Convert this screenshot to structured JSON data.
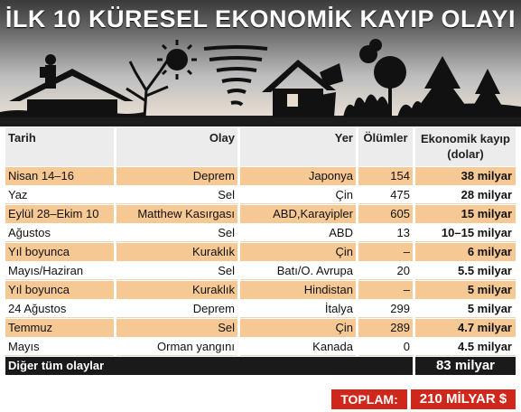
{
  "title": "İLK 10 KÜRESEL EKONOMİK KAYIP OLAYI",
  "illustration_icons": [
    "flood-house-icon",
    "drought-tree-icon",
    "sun-icon",
    "tornado-icon",
    "earthquake-house-icon",
    "wildfire-forest-icon"
  ],
  "colors": {
    "row_highlight": "#f6c894",
    "total_red": "#d0271d",
    "dark_row": "#1a1a1a"
  },
  "table": {
    "headers": {
      "date": "Tarih",
      "event": "Olay",
      "place": "Yer",
      "deaths": "Ölümler",
      "loss": "Ekonomik kayıp (dolar)"
    },
    "rows": [
      {
        "date": "Nisan 14–16",
        "event": "Deprem",
        "place": "Japonya",
        "deaths": "154",
        "loss": "38 milyar"
      },
      {
        "date": "Yaz",
        "event": "Sel",
        "place": "Çin",
        "deaths": "475",
        "loss": "28 milyar"
      },
      {
        "date": "Eylül 28–Ekim 10",
        "event": "Matthew Kasırgası",
        "place": "ABD,Karayipler",
        "deaths": "605",
        "loss": "15 milyar"
      },
      {
        "date": "Ağustos",
        "event": "Sel",
        "place": "ABD",
        "deaths": "13",
        "loss": "10–15 milyar"
      },
      {
        "date": "Yıl boyunca",
        "event": "Kuraklık",
        "place": "Çin",
        "deaths": "–",
        "loss": "6 milyar"
      },
      {
        "date": "Mayıs/Haziran",
        "event": "Sel",
        "place": "Batı/O. Avrupa",
        "deaths": "20",
        "loss": "5.5 milyar"
      },
      {
        "date": "Yıl boyunca",
        "event": "Kuraklık",
        "place": "Hindistan",
        "deaths": "–",
        "loss": "5 milyar"
      },
      {
        "date": "24 Ağustos",
        "event": "Deprem",
        "place": "İtalya",
        "deaths": "299",
        "loss": "5 milyar"
      },
      {
        "date": "Temmuz",
        "event": "Sel",
        "place": "Çin",
        "deaths": "289",
        "loss": "4.7 milyar"
      },
      {
        "date": "Mayıs",
        "event": "Orman yangını",
        "place": "Kanada",
        "deaths": "0",
        "loss": "4.5 milyar"
      }
    ],
    "other": {
      "label": "Diğer tüm olaylar",
      "loss": "83 milyar"
    },
    "total": {
      "label": "TOPLAM:",
      "value": "210 MİLYAR $"
    }
  }
}
